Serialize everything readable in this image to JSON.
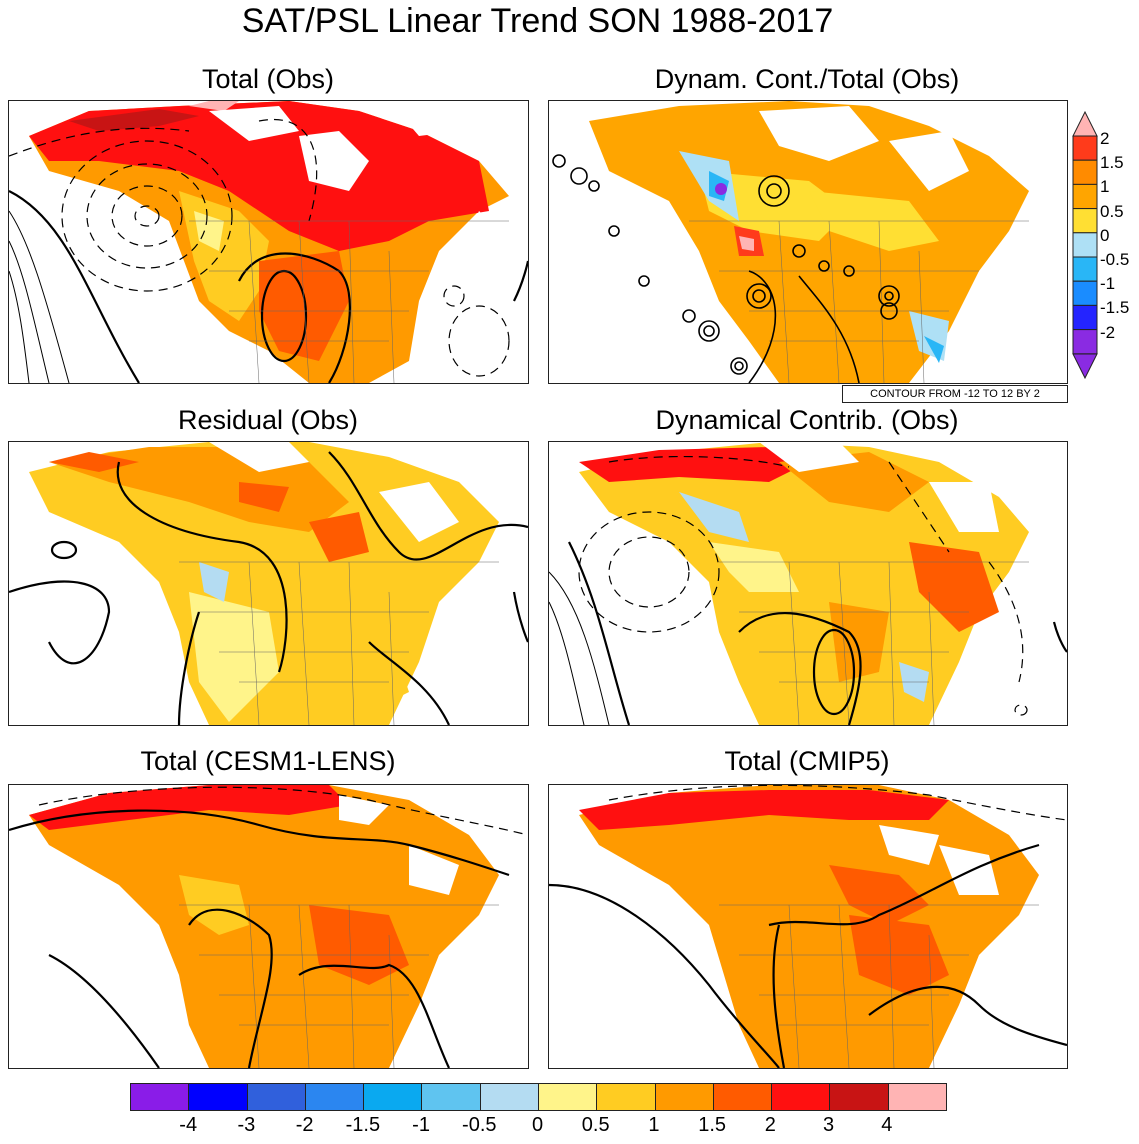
{
  "title": "SAT/PSL Linear Trend SON 1988-2017",
  "panels": [
    {
      "id": "total-obs",
      "title": "Total (Obs)"
    },
    {
      "id": "dynam-cont-total-obs",
      "title": "Dynam. Cont./Total (Obs)"
    },
    {
      "id": "residual-obs",
      "title": "Residual (Obs)"
    },
    {
      "id": "dynamical-contrib-obs",
      "title": "Dynamical Contrib. (Obs)"
    },
    {
      "id": "total-cesm1-lens",
      "title": "Total (CESM1-LENS)"
    },
    {
      "id": "total-cmip5",
      "title": "Total (CMIP5)"
    }
  ],
  "contour_note": "CONTOUR FROM -12 TO 12 BY 2",
  "ratio_colorbar": {
    "labels": [
      "2",
      "1.5",
      "1",
      "0.5",
      "0",
      "-0.5",
      "-1",
      "-1.5",
      "-2"
    ],
    "colors": [
      "#ff3b1b",
      "#ff8b00",
      "#ffa500",
      "#ffdf33",
      "#aee0f5",
      "#29b6f6",
      "#1a8cff",
      "#2424ff",
      "#8a2be2"
    ]
  },
  "colorbar": {
    "labels": [
      "-4",
      "-3",
      "-2",
      "-1.5",
      "-1",
      "-0.5",
      "0",
      "0.5",
      "1",
      "1.5",
      "2",
      "3",
      "4"
    ],
    "colors": [
      "#8a1ce8",
      "#0000ff",
      "#3060dc",
      "#2b86f0",
      "#0aa9f0",
      "#5fc4f0",
      "#b4dcf2",
      "#fff48a",
      "#ffcc22",
      "#ff9a00",
      "#ff5b00",
      "#ff1010",
      "#c81414",
      "#ffb4b4"
    ]
  }
}
